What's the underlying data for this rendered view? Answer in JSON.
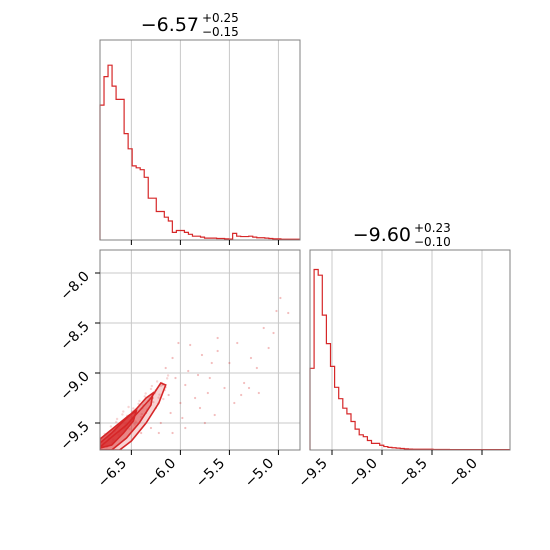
{
  "chart_data": [
    {
      "type": "histogram",
      "panel": "top-left",
      "title": {
        "value": "−6.57",
        "upper": "+0.25",
        "lower": "−0.15"
      },
      "xlim": [
        -6.82,
        -4.78
      ],
      "xticks": [
        -6.5,
        -6.0,
        -5.5,
        -5.0
      ],
      "grid": true,
      "color": "#d62728",
      "bins": {
        "start": -6.82,
        "width": 0.041,
        "counts": [
          0.71,
          0.86,
          0.92,
          0.81,
          0.74,
          0.74,
          0.56,
          0.48,
          0.39,
          0.38,
          0.37,
          0.33,
          0.22,
          0.22,
          0.15,
          0.15,
          0.12,
          0.1,
          0.04,
          0.05,
          0.05,
          0.04,
          0.03,
          0.02,
          0.02,
          0.015,
          0.01,
          0.01,
          0.01,
          0.008,
          0.008,
          0.006,
          0.005,
          0.035,
          0.02,
          0.018,
          0.018,
          0.02,
          0.015,
          0.012,
          0.012,
          0.01,
          0.008,
          0.006,
          0.006,
          0.004,
          0.004,
          0.004,
          0.004,
          0.004
        ]
      },
      "ymax": 1.0
    },
    {
      "type": "histogram",
      "panel": "bottom-right",
      "title": {
        "value": "−9.60",
        "upper": "+0.23",
        "lower": "−0.10"
      },
      "xlim": [
        -9.72,
        -7.72
      ],
      "xticks": [
        -9.5,
        -9.0,
        -8.5,
        -8.0
      ],
      "grid": true,
      "color": "#d62728",
      "bins": {
        "start": -9.72,
        "width": 0.041,
        "counts": [
          0.43,
          0.95,
          0.92,
          0.71,
          0.56,
          0.44,
          0.33,
          0.27,
          0.22,
          0.19,
          0.15,
          0.11,
          0.08,
          0.07,
          0.05,
          0.035,
          0.035,
          0.025,
          0.018,
          0.014,
          0.012,
          0.01,
          0.008,
          0.006,
          0.005,
          0.004,
          0.004,
          0.004,
          0.004,
          0.004,
          0.003,
          0.003,
          0.003,
          0.003,
          0.002,
          0.002,
          0.002,
          0.002,
          0.002,
          0.002,
          0.002,
          0.002,
          0.002,
          0.002,
          0.002,
          0.002,
          0.002,
          0.002,
          0.002
        ]
      },
      "ymax": 1.0
    },
    {
      "type": "scatter",
      "panel": "bottom-left",
      "xlim": [
        -6.82,
        -4.78
      ],
      "ylim": [
        -9.77,
        -7.77
      ],
      "xticks": [
        -6.5,
        -6.0,
        -5.5,
        -5.0
      ],
      "yticks": [
        -9.5,
        -9.0,
        -8.5,
        -8.0
      ],
      "grid": true,
      "color": "#d62728",
      "points": [
        [
          -6.25,
          -9.35
        ],
        [
          -6.12,
          -9.22
        ],
        [
          -6.05,
          -9.05
        ],
        [
          -5.95,
          -9.12
        ],
        [
          -6.0,
          -9.3
        ],
        [
          -5.85,
          -9.25
        ],
        [
          -5.7,
          -9.05
        ],
        [
          -5.62,
          -8.78
        ],
        [
          -5.78,
          -8.82
        ],
        [
          -6.08,
          -8.85
        ],
        [
          -6.15,
          -8.95
        ],
        [
          -5.92,
          -8.98
        ],
        [
          -5.8,
          -9.35
        ],
        [
          -6.2,
          -9.5
        ],
        [
          -6.3,
          -9.55
        ],
        [
          -6.4,
          -9.6
        ],
        [
          -5.55,
          -9.15
        ],
        [
          -5.45,
          -9.3
        ],
        [
          -5.38,
          -9.22
        ],
        [
          -5.35,
          -9.1
        ],
        [
          -5.28,
          -8.85
        ],
        [
          -5.22,
          -8.95
        ],
        [
          -5.1,
          -8.75
        ],
        [
          -5.05,
          -8.6
        ],
        [
          -5.02,
          -8.38
        ],
        [
          -4.98,
          -8.25
        ],
        [
          -5.15,
          -8.55
        ],
        [
          -5.62,
          -8.65
        ],
        [
          -5.9,
          -8.72
        ],
        [
          -6.1,
          -9.4
        ],
        [
          -5.98,
          -9.45
        ],
        [
          -6.18,
          -9.12
        ],
        [
          -5.72,
          -9.2
        ],
        [
          -5.65,
          -9.42
        ],
        [
          -5.5,
          -8.9
        ],
        [
          -6.02,
          -8.7
        ],
        [
          -5.82,
          -9.02
        ],
        [
          -6.28,
          -9.25
        ],
        [
          -6.35,
          -9.4
        ],
        [
          -5.42,
          -8.7
        ],
        [
          -5.3,
          -9.15
        ],
        [
          -5.95,
          -9.55
        ],
        [
          -6.08,
          -9.6
        ],
        [
          -5.75,
          -9.5
        ],
        [
          -5.2,
          -9.2
        ],
        [
          -4.9,
          -8.4
        ],
        [
          -5.68,
          -8.9
        ],
        [
          -6.22,
          -9.6
        ]
      ],
      "contours": [
        [
          [
            -6.82,
            -9.74
          ],
          [
            -6.7,
            -9.64
          ],
          [
            -6.55,
            -9.52
          ],
          [
            -6.42,
            -9.38
          ],
          [
            -6.3,
            -9.25
          ],
          [
            -6.2,
            -9.1
          ],
          [
            -6.15,
            -9.12
          ],
          [
            -6.22,
            -9.3
          ],
          [
            -6.35,
            -9.5
          ],
          [
            -6.5,
            -9.68
          ],
          [
            -6.62,
            -9.77
          ],
          [
            -6.82,
            -9.77
          ]
        ],
        [
          [
            -6.82,
            -9.7
          ],
          [
            -6.7,
            -9.6
          ],
          [
            -6.58,
            -9.48
          ],
          [
            -6.45,
            -9.36
          ],
          [
            -6.35,
            -9.25
          ],
          [
            -6.28,
            -9.2
          ],
          [
            -6.3,
            -9.32
          ],
          [
            -6.42,
            -9.5
          ],
          [
            -6.55,
            -9.65
          ],
          [
            -6.7,
            -9.77
          ],
          [
            -6.82,
            -9.77
          ]
        ],
        [
          [
            -6.82,
            -9.66
          ],
          [
            -6.72,
            -9.58
          ],
          [
            -6.62,
            -9.5
          ],
          [
            -6.52,
            -9.42
          ],
          [
            -6.45,
            -9.38
          ],
          [
            -6.48,
            -9.48
          ],
          [
            -6.58,
            -9.6
          ],
          [
            -6.7,
            -9.72
          ],
          [
            -6.82,
            -9.75
          ]
        ]
      ]
    }
  ]
}
